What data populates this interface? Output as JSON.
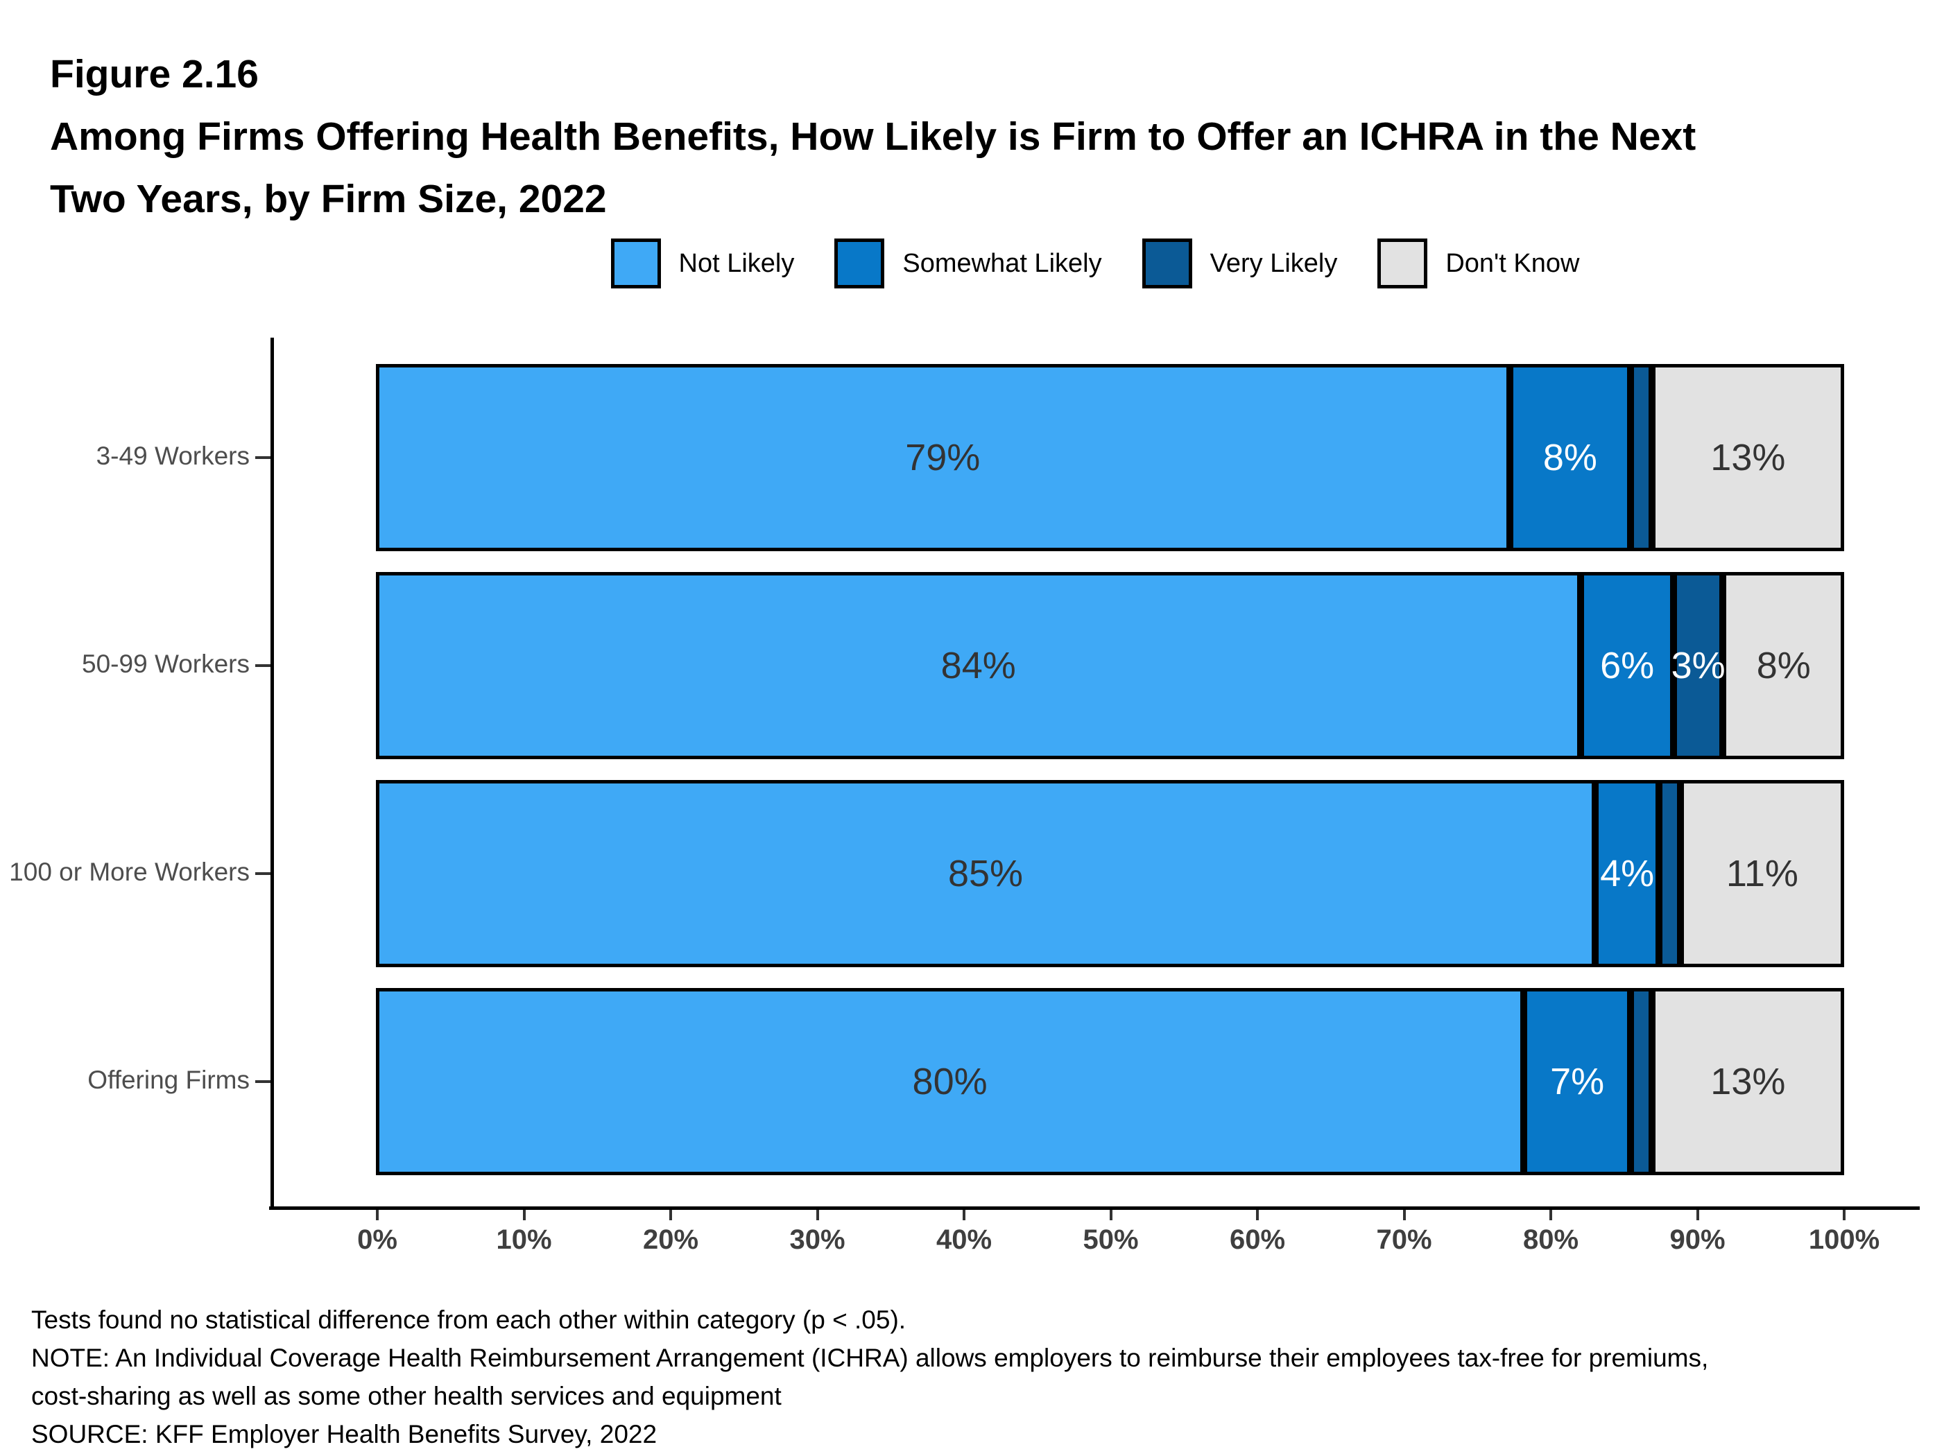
{
  "figure": {
    "label": "Figure 2.16",
    "title_lines": [
      "Among Firms Offering Health Benefits, How Likely is Firm to Offer an ICHRA in the Next",
      "Two Years, by Firm Size, 2022"
    ]
  },
  "legend": {
    "items": [
      {
        "name": "Not Likely",
        "fill": "#3FA9F6",
        "label_color": "#333333"
      },
      {
        "name": "Somewhat Likely",
        "fill": "#0878C8",
        "label_color": "#FFFFFF"
      },
      {
        "name": "Very Likely",
        "fill": "#0B5A96",
        "label_color": "#FFFFFF"
      },
      {
        "name": "Don't Know",
        "fill": "#E2E2E2",
        "label_color": "#333333"
      }
    ]
  },
  "chart_data": {
    "type": "bar",
    "orientation": "horizontal",
    "stacked": true,
    "title": "Among Firms Offering Health Benefits, How Likely is Firm to Offer an ICHRA in the Next Two Years, by Firm Size, 2022",
    "categories": [
      "3-49 Workers",
      "50-99 Workers",
      "100 or More Workers",
      "Offering Firms"
    ],
    "series": [
      {
        "name": "Not Likely",
        "values": [
          79,
          84,
          85,
          80
        ]
      },
      {
        "name": "Somewhat Likely",
        "values": [
          8,
          6,
          4,
          7
        ]
      },
      {
        "name": "Very Likely",
        "values": [
          1,
          3,
          1,
          1
        ]
      },
      {
        "name": "Don't Know",
        "values": [
          13,
          8,
          11,
          13
        ]
      }
    ],
    "rows": [
      {
        "category": "3-49 Workers",
        "segments": [
          {
            "series": "Not Likely",
            "value": 79,
            "label": "79%"
          },
          {
            "series": "Somewhat Likely",
            "value": 8,
            "label": "8%"
          },
          {
            "series": "Very Likely",
            "value": 1,
            "label": ""
          },
          {
            "series": "Don't Know",
            "value": 13,
            "label": "13%"
          }
        ]
      },
      {
        "category": "50-99 Workers",
        "segments": [
          {
            "series": "Not Likely",
            "value": 84,
            "label": "84%"
          },
          {
            "series": "Somewhat Likely",
            "value": 6,
            "label": "6%"
          },
          {
            "series": "Very Likely",
            "value": 3,
            "label": "3%"
          },
          {
            "series": "Don't Know",
            "value": 8,
            "label": "8%"
          }
        ]
      },
      {
        "category": "100 or More Workers",
        "segments": [
          {
            "series": "Not Likely",
            "value": 85,
            "label": "85%"
          },
          {
            "series": "Somewhat Likely",
            "value": 4,
            "label": "4%"
          },
          {
            "series": "Very Likely",
            "value": 1,
            "label": ""
          },
          {
            "series": "Don't Know",
            "value": 11,
            "label": "11%"
          }
        ]
      },
      {
        "category": "Offering Firms",
        "segments": [
          {
            "series": "Not Likely",
            "value": 80,
            "label": "80%"
          },
          {
            "series": "Somewhat Likely",
            "value": 7,
            "label": "7%"
          },
          {
            "series": "Very Likely",
            "value": 1,
            "label": ""
          },
          {
            "series": "Don't Know",
            "value": 13,
            "label": "13%"
          }
        ]
      }
    ],
    "x_ticks": [
      "0%",
      "10%",
      "20%",
      "30%",
      "40%",
      "50%",
      "60%",
      "70%",
      "80%",
      "90%",
      "100%"
    ],
    "xlim": [
      0,
      100
    ],
    "grid": false,
    "legend_position": "top"
  },
  "notes": {
    "lines": [
      "Tests found no statistical difference from each other within category (p < .05).",
      "NOTE: An Individual Coverage Health Reimbursement Arrangement (ICHRA) allows employers to reimburse their employees tax-free for premiums,",
      "cost-sharing as well as some other health services and equipment",
      "SOURCE: KFF Employer Health Benefits Survey, 2022"
    ]
  }
}
